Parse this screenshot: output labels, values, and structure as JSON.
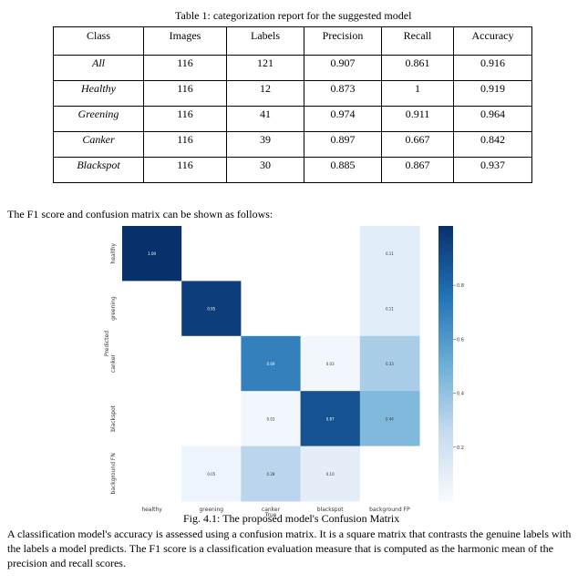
{
  "table": {
    "caption": "Table 1: categorization report for the suggested model",
    "headers": [
      "Class",
      "Images",
      "Labels",
      "Precision",
      "Recall",
      "Accuracy"
    ],
    "rows": [
      [
        "All",
        "116",
        "121",
        "0.907",
        "0.861",
        "0.916"
      ],
      [
        "Healthy",
        "116",
        "12",
        "0.873",
        "1",
        "0.919"
      ],
      [
        "Greening",
        "116",
        "41",
        "0.974",
        "0.911",
        "0.964"
      ],
      [
        "Canker",
        "116",
        "39",
        "0.897",
        "0.667",
        "0.842"
      ],
      [
        "Blackspot",
        "116",
        "30",
        "0.885",
        "0.867",
        "0.937"
      ]
    ]
  },
  "intro_text": "The F1 score and confusion matrix can be shown as follows:",
  "chart_data": {
    "type": "heatmap",
    "ylabel": "Predicted",
    "xlabel": "True",
    "x_categories": [
      "healthy",
      "greening",
      "canker",
      "blackspot",
      "background FP"
    ],
    "y_categories": [
      "healthy",
      "greening",
      "canker",
      "blackspot",
      "background FN"
    ],
    "matrix": [
      [
        1.0,
        null,
        null,
        null,
        0.11
      ],
      [
        null,
        0.95,
        null,
        null,
        0.11
      ],
      [
        null,
        null,
        0.69,
        0.03,
        0.33
      ],
      [
        null,
        null,
        0.03,
        0.87,
        0.44
      ],
      [
        null,
        0.05,
        0.28,
        0.1,
        null
      ]
    ],
    "colorbar": {
      "ticks": [
        "0.8",
        "0.6",
        "0.4",
        "0.2"
      ],
      "tick_values": [
        0.8,
        0.6,
        0.4,
        0.2
      ],
      "range": [
        0,
        1
      ],
      "colormap": "Blues"
    }
  },
  "figure_caption": "Fig. 4.1: The proposed model's Confusion Matrix",
  "paragraph": "A classification model's accuracy is assessed using a confusion matrix. It is a square matrix that contrasts the genuine labels with the labels a model predicts. The F1 score is a classification evaluation measure that is computed as the harmonic mean of the precision and recall scores."
}
